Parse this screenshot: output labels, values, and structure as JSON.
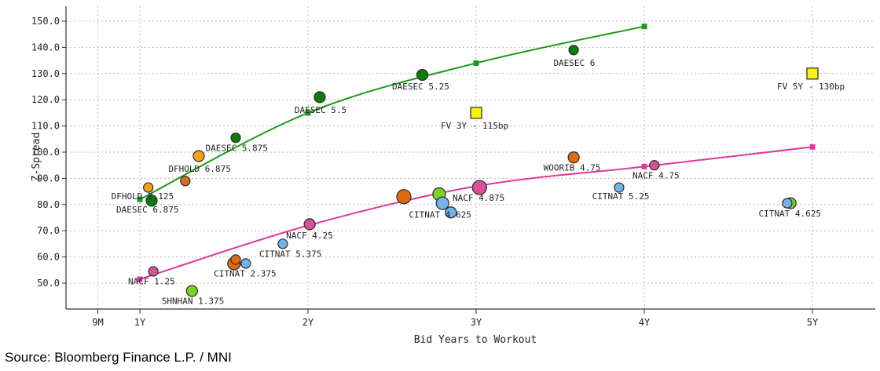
{
  "chart_data": {
    "type": "scatter",
    "xlabel": "Bid Years to Workout",
    "ylabel": "Z-Spread",
    "xlim": [
      0.5,
      5.4
    ],
    "ylim": [
      45,
      154
    ],
    "x_ticks": [
      {
        "value": 0.75,
        "label": "9M"
      },
      {
        "value": 1,
        "label": "1Y"
      },
      {
        "value": 2,
        "label": "2Y"
      },
      {
        "value": 3,
        "label": "3Y"
      },
      {
        "value": 4,
        "label": "4Y"
      },
      {
        "value": 5,
        "label": "5Y"
      }
    ],
    "y_ticks": [
      {
        "value": 50,
        "label": "50.0"
      },
      {
        "value": 60,
        "label": "60.0"
      },
      {
        "value": 70,
        "label": "70.0"
      },
      {
        "value": 80,
        "label": "80.0"
      },
      {
        "value": 90,
        "label": "90.0"
      },
      {
        "value": 100,
        "label": "100.0"
      },
      {
        "value": 110,
        "label": "110.0"
      },
      {
        "value": 120,
        "label": "120.0"
      },
      {
        "value": 130,
        "label": "130.0"
      },
      {
        "value": 140,
        "label": "140.0"
      },
      {
        "value": 150,
        "label": "150.0"
      }
    ],
    "grid": true,
    "curves": [
      {
        "name": "upper-curve",
        "color": "#1a9a1a",
        "x": [
          1,
          2,
          3,
          4
        ],
        "y": [
          82,
          115,
          134,
          148
        ]
      },
      {
        "name": "lower-curve",
        "color": "#e0389a",
        "x": [
          1,
          2,
          3,
          4,
          5
        ],
        "y": [
          51.5,
          72,
          87,
          94.5,
          102
        ]
      }
    ],
    "points": [
      {
        "label": "DFHOLD 2.125",
        "x": 1.05,
        "y": 86.5,
        "color": "#f7a01c",
        "size": 6,
        "shape": "circle"
      },
      {
        "label": "DAESEC 6.875",
        "x": 1.07,
        "y": 81.5,
        "color": "#0a7d0a",
        "size": 7,
        "shape": "circle"
      },
      {
        "label": "DFHOLD 6.875",
        "x": 1.35,
        "y": 98.5,
        "color": "#f7a01c",
        "size": 7,
        "shape": "circle"
      },
      {
        "label": "",
        "x": 1.27,
        "y": 89,
        "color": "#e06c10",
        "size": 6,
        "shape": "circle"
      },
      {
        "label": "DAESEC 5.875",
        "x": 1.57,
        "y": 105.5,
        "color": "#0a7d0a",
        "size": 6,
        "shape": "circle"
      },
      {
        "label": "DAESEC 5.5",
        "x": 2.07,
        "y": 121,
        "color": "#0a7d0a",
        "size": 7,
        "shape": "circle"
      },
      {
        "label": "DAESEC 5.25",
        "x": 2.68,
        "y": 129.5,
        "color": "#0a7d0a",
        "size": 7,
        "shape": "circle"
      },
      {
        "label": "DAESEC 6",
        "x": 3.58,
        "y": 139,
        "color": "#0a7d0a",
        "size": 6,
        "shape": "circle"
      },
      {
        "label": "NACF 1.25",
        "x": 1.08,
        "y": 54.5,
        "color": "#d94f9a",
        "size": 6,
        "shape": "circle"
      },
      {
        "label": "SHNHAN 1.375",
        "x": 1.31,
        "y": 47,
        "color": "#7ed321",
        "size": 7,
        "shape": "circle"
      },
      {
        "label": "",
        "x": 1.56,
        "y": 57.5,
        "color": "#e06c10",
        "size": 8,
        "shape": "circle"
      },
      {
        "label": "",
        "x": 1.57,
        "y": 59,
        "color": "#e06c10",
        "size": 6,
        "shape": "circle"
      },
      {
        "label": "CITNAT 2.375",
        "x": 1.63,
        "y": 57.5,
        "color": "#74b3e8",
        "size": 6,
        "shape": "circle"
      },
      {
        "label": "CITNAT 5.375",
        "x": 1.85,
        "y": 65,
        "color": "#74b3e8",
        "size": 6,
        "shape": "circle"
      },
      {
        "label": "NACF 4.25",
        "x": 2.01,
        "y": 72.5,
        "color": "#d94f9a",
        "size": 7,
        "shape": "circle"
      },
      {
        "label": "",
        "x": 2.57,
        "y": 83,
        "color": "#e06c10",
        "size": 9,
        "shape": "circle"
      },
      {
        "label": "",
        "x": 2.78,
        "y": 84,
        "color": "#7ed321",
        "size": 8,
        "shape": "circle"
      },
      {
        "label": "CITNAT 4.625",
        "x": 2.8,
        "y": 80.5,
        "color": "#74b3e8",
        "size": 8,
        "shape": "circle"
      },
      {
        "label": "",
        "x": 2.85,
        "y": 77,
        "color": "#74b3e8",
        "size": 7,
        "shape": "circle"
      },
      {
        "label": "NACF 4.875",
        "x": 3.02,
        "y": 86.5,
        "color": "#d94f9a",
        "size": 9,
        "shape": "circle"
      },
      {
        "label": "WOORIB 4.75",
        "x": 3.58,
        "y": 98,
        "color": "#e06c10",
        "size": 7,
        "shape": "circle"
      },
      {
        "label": "CITNAT 5.25",
        "x": 3.85,
        "y": 86.5,
        "color": "#74b3e8",
        "size": 6,
        "shape": "circle"
      },
      {
        "label": "NACF 4.75",
        "x": 4.06,
        "y": 95,
        "color": "#d94f9a",
        "size": 6,
        "shape": "circle"
      },
      {
        "label": "",
        "x": 4.87,
        "y": 80.5,
        "color": "#7ed321",
        "size": 7,
        "shape": "circle"
      },
      {
        "label": "CITNAT 4.625",
        "x": 4.85,
        "y": 80.5,
        "color": "#74b3e8",
        "size": 6,
        "shape": "circle"
      },
      {
        "label": "FV 3Y - 115bp",
        "x": 3.0,
        "y": 115,
        "color": "#f5f500",
        "size": 7,
        "shape": "square"
      },
      {
        "label": "FV 5Y - 130bp",
        "x": 5.0,
        "y": 130,
        "color": "#f5f500",
        "size": 7,
        "shape": "square"
      }
    ],
    "point_labels": [
      {
        "text": "DFHOLD 2.125",
        "x": 0.83,
        "y": 82
      },
      {
        "text": "DAESEC 6.875",
        "x": 0.86,
        "y": 77
      },
      {
        "text": "DFHOLD 6.875",
        "x": 1.17,
        "y": 92.5
      },
      {
        "text": "DAESEC 5.875",
        "x": 1.39,
        "y": 100.5
      },
      {
        "text": "DAESEC 5.5",
        "x": 1.92,
        "y": 115
      },
      {
        "text": "DAESEC 5.25",
        "x": 2.5,
        "y": 124
      },
      {
        "text": "DAESEC 6",
        "x": 3.46,
        "y": 133
      },
      {
        "text": "FV 3Y - 115bp",
        "x": 2.79,
        "y": 109
      },
      {
        "text": "FV 5Y - 130bp",
        "x": 4.79,
        "y": 124
      },
      {
        "text": "WOORIB 4.75",
        "x": 3.4,
        "y": 93
      },
      {
        "text": "NACF 4.75",
        "x": 3.93,
        "y": 90
      },
      {
        "text": "CITNAT 5.25",
        "x": 3.69,
        "y": 82
      },
      {
        "text": "NACF 4.875",
        "x": 2.86,
        "y": 81.5
      },
      {
        "text": "CITNAT 4.625",
        "x": 2.6,
        "y": 75
      },
      {
        "text": "CITNAT 4.625",
        "x": 4.68,
        "y": 75.5
      },
      {
        "text": "NACF 4.25",
        "x": 1.87,
        "y": 67
      },
      {
        "text": "CITNAT 5.375",
        "x": 1.71,
        "y": 60
      },
      {
        "text": "CITNAT 2.375",
        "x": 1.44,
        "y": 52.5
      },
      {
        "text": "NACF 1.25",
        "x": 0.93,
        "y": 49.5
      },
      {
        "text": "SHNHAN 1.375",
        "x": 1.13,
        "y": 42
      }
    ]
  },
  "source_text": "Source: Bloomberg Finance L.P. / MNI"
}
